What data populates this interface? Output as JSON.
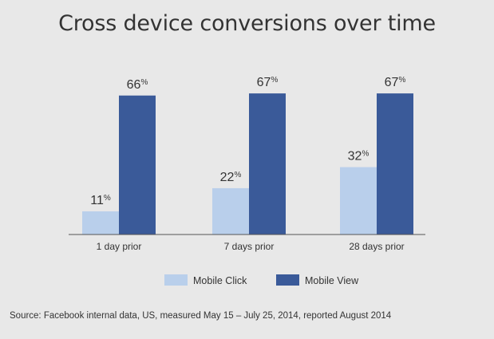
{
  "chart_data": {
    "type": "bar",
    "title": "Cross device conversions over time",
    "categories": [
      "1 day prior",
      "7 days prior",
      "28 days prior"
    ],
    "series": [
      {
        "name": "Mobile Click",
        "values": [
          11,
          22,
          32
        ],
        "color": "#b9cfeb"
      },
      {
        "name": "Mobile View",
        "values": [
          66,
          67,
          67
        ],
        "color": "#3a5a99"
      }
    ],
    "value_suffix": "%",
    "ylim": [
      0,
      100
    ],
    "grid": false,
    "legend_position": "bottom"
  },
  "source": "Source: Facebook internal data, US, measured May 15 – July 25, 2014, reported August 2014"
}
